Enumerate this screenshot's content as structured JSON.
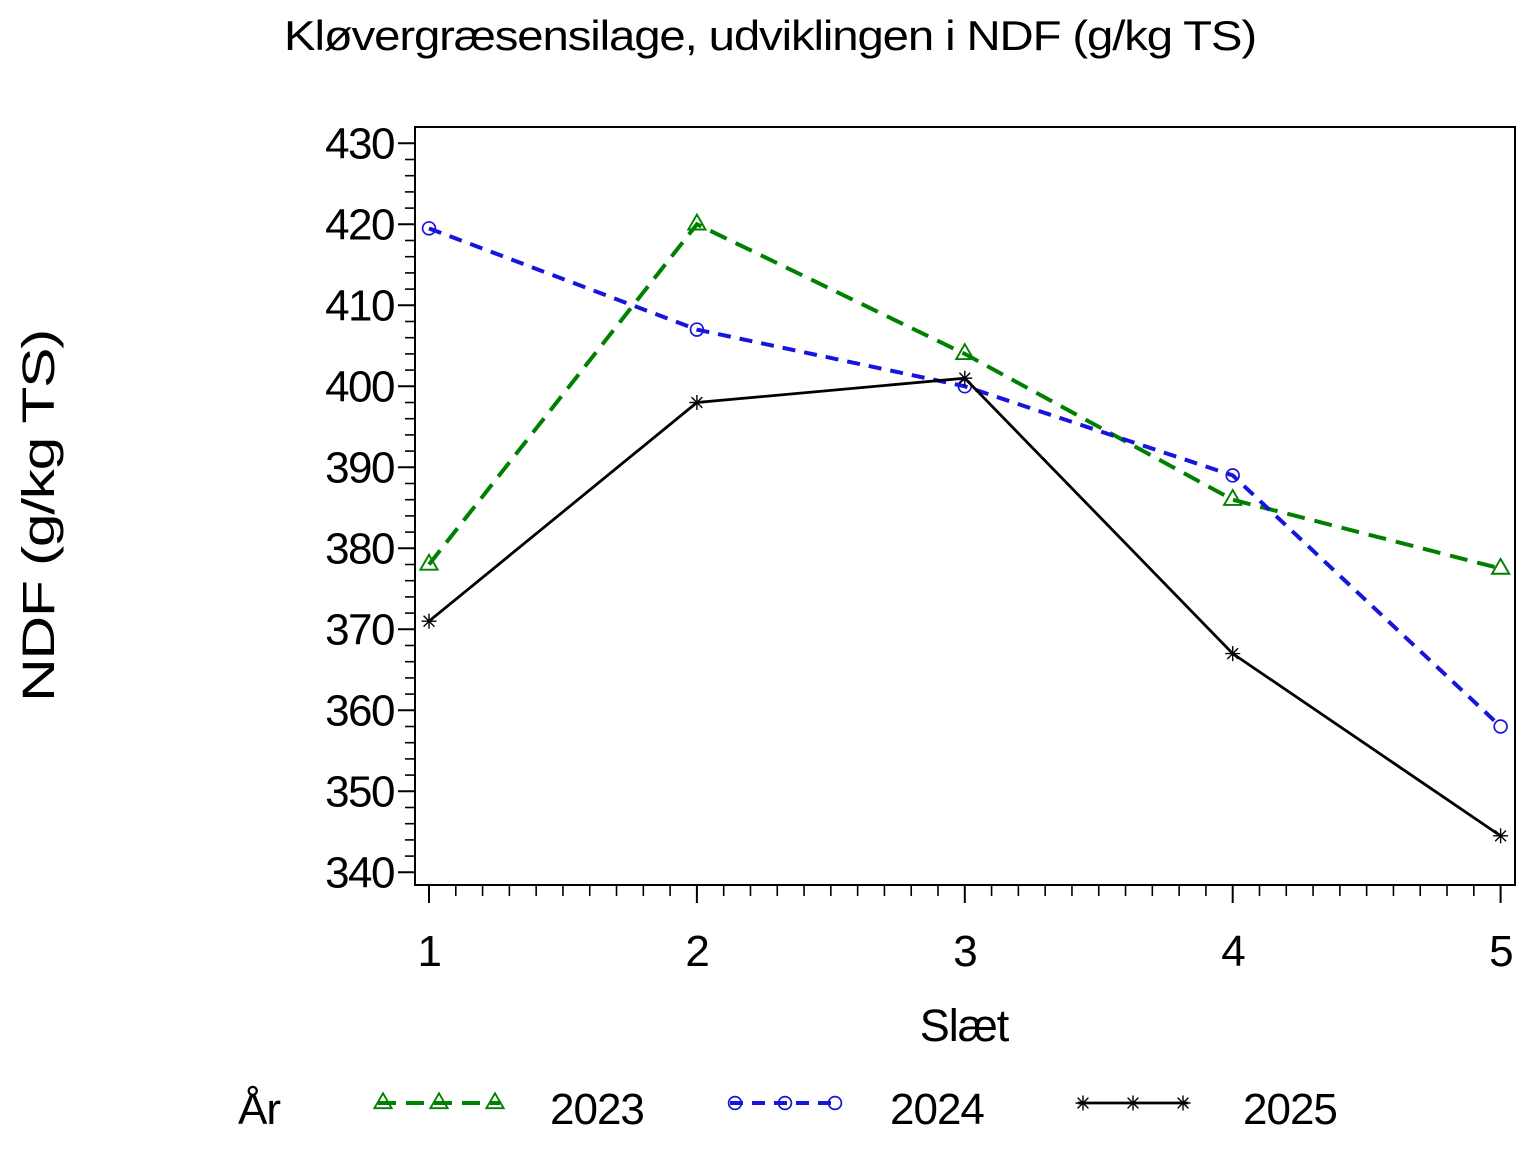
{
  "page": {
    "background": "#ffffff"
  },
  "chart_data": {
    "type": "line",
    "title": "Kløvergræsensilage,  udviklingen  i  NDF  (g/kg  TS)",
    "xlabel": "Slæt",
    "ylabel": "NDF  (g/kg  TS)",
    "x": [
      1,
      2,
      3,
      4,
      5
    ],
    "xlim": [
      1,
      5
    ],
    "ylim": [
      340,
      430
    ],
    "x_tick_labels": [
      "1",
      "2",
      "3",
      "4",
      "5"
    ],
    "y_tick_labels": [
      "430",
      "420",
      "410",
      "400",
      "390",
      "380",
      "370",
      "360",
      "350",
      "340"
    ],
    "y_major_step": 10,
    "y_minor_step": 2,
    "x_minor_step": 0.1,
    "grid": false,
    "legend_position": "bottom",
    "legend_title": "År",
    "series": [
      {
        "name": "2023",
        "color": "#008000",
        "line_style": "dashed",
        "marker": "triangle",
        "values": [
          378,
          420,
          404,
          386,
          377.5
        ]
      },
      {
        "name": "2024",
        "color": "#1515dd",
        "line_style": "dashed",
        "marker": "circle",
        "values": [
          419.5,
          407,
          400,
          389,
          358
        ]
      },
      {
        "name": "2025",
        "color": "#000000",
        "line_style": "solid",
        "marker": "star",
        "values": [
          371,
          398,
          401,
          367,
          344.5
        ]
      }
    ]
  }
}
